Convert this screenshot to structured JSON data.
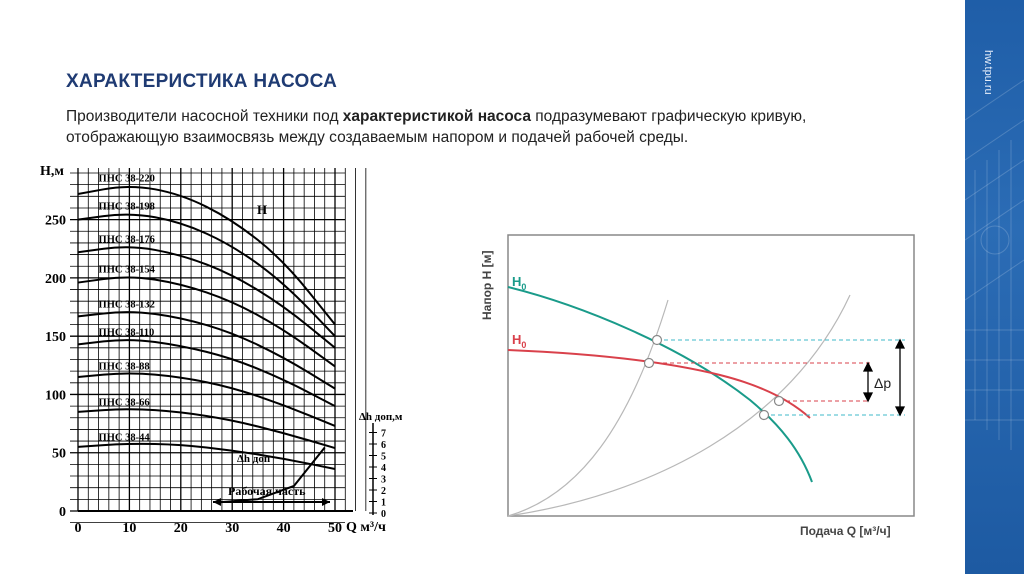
{
  "header": {
    "title": "ХАРАКТЕРИСТИКА НАСОСА",
    "site_url": "hw.tpu.ru"
  },
  "description": {
    "part1": "Производители насосной техники под ",
    "bold": "характеристикой насоса",
    "part2": " подразумевают графическую кривую, отображающую взаимосвязь между создаваемым напором и подачей рабочей среды."
  },
  "colors": {
    "title": "#1f3b73",
    "side_band": "#1f5ea8",
    "curve_teal": "#1a9b8a",
    "curve_red": "#d9414b",
    "dashed_cyan": "#3fb8c8",
    "system_curve": "#b8b8b8"
  },
  "left_chart": {
    "y_axis_label": "Н,м",
    "y_ticks": [
      "0",
      "50",
      "100",
      "150",
      "200",
      "250"
    ],
    "x_axis_label": "Q м³/ч",
    "x_ticks": [
      "0",
      "10",
      "20",
      "30",
      "40",
      "50"
    ],
    "curve_label": "Н",
    "npsh_axis_label": "Δh доп,м",
    "npsh_ticks": [
      "0",
      "1",
      "2",
      "3",
      "4",
      "5",
      "6",
      "7"
    ],
    "npsh_curve_label": "Δh доп",
    "working_range_label": "Рабочая часть"
  },
  "chart_data": {
    "type": "line",
    "xlabel": "Q м³/ч",
    "ylabel": "Н,м",
    "xlim": [
      0,
      50
    ],
    "ylim": [
      0,
      290
    ],
    "series": [
      {
        "name": "ПНС 38-220",
        "x": [
          0,
          10,
          20,
          30,
          40,
          50
        ],
        "y": [
          272,
          280,
          272,
          250,
          215,
          160
        ]
      },
      {
        "name": "ПНС 38-198",
        "x": [
          0,
          10,
          20,
          30,
          40,
          50
        ],
        "y": [
          250,
          256,
          248,
          228,
          196,
          150
        ]
      },
      {
        "name": "ПНС 38-176",
        "x": [
          0,
          10,
          20,
          30,
          40,
          50
        ],
        "y": [
          222,
          228,
          220,
          203,
          176,
          140
        ]
      },
      {
        "name": "ПНС 38-154",
        "x": [
          0,
          10,
          20,
          30,
          40,
          50
        ],
        "y": [
          196,
          202,
          195,
          180,
          156,
          124
        ]
      },
      {
        "name": "ПНС 38-132",
        "x": [
          0,
          10,
          20,
          30,
          40,
          50
        ],
        "y": [
          167,
          172,
          166,
          153,
          132,
          105
        ]
      },
      {
        "name": "ПНС 38-110",
        "x": [
          0,
          10,
          20,
          30,
          40,
          50
        ],
        "y": [
          143,
          148,
          142,
          131,
          113,
          90
        ]
      },
      {
        "name": "ПНС 38-88",
        "x": [
          0,
          10,
          20,
          30,
          40,
          50
        ],
        "y": [
          115,
          119,
          115,
          106,
          91,
          73
        ]
      },
      {
        "name": "ПНС 38-66",
        "x": [
          0,
          10,
          20,
          30,
          40,
          50
        ],
        "y": [
          85,
          88,
          85,
          78,
          67,
          54
        ]
      },
      {
        "name": "ПНС 38-44",
        "x": [
          0,
          10,
          20,
          30,
          40,
          50
        ],
        "y": [
          55,
          58,
          57,
          52,
          45,
          36
        ]
      }
    ],
    "npsh_curve": {
      "x": [
        27,
        35,
        42,
        48
      ],
      "y": [
        0.5,
        0.8,
        2.0,
        5.5
      ]
    },
    "working_range": [
      28,
      47
    ],
    "grid": true
  },
  "right_chart": {
    "y_axis_label": "Напор Н [м]",
    "x_axis_label": "Подача Q  [м³/ч]",
    "curve_labels": [
      "H",
      "H"
    ],
    "curve_label_sub": "0",
    "delta_label": "Δp"
  }
}
